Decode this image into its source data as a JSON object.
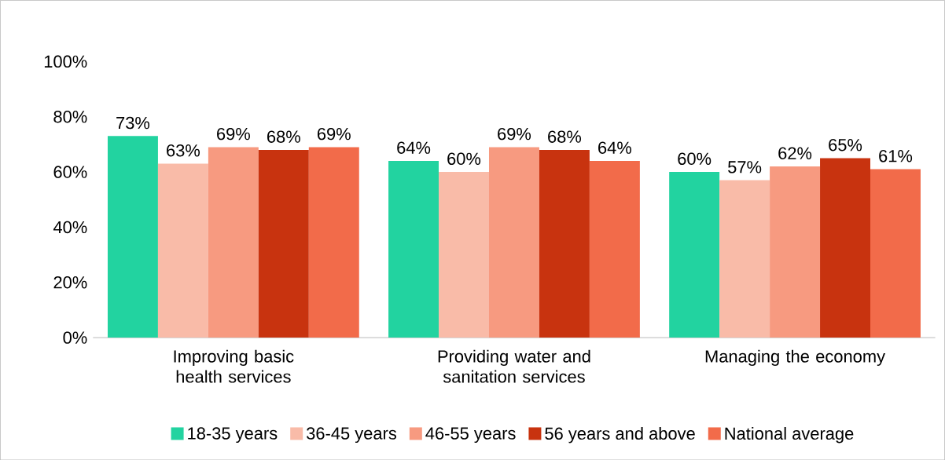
{
  "chart_data": {
    "type": "bar",
    "categories": [
      "Improving basic health services",
      "Providing water and sanitation services",
      "Managing the economy"
    ],
    "series": [
      {
        "name": "18-35 years",
        "color": "#22d3a0",
        "values": [
          73,
          64,
          60
        ],
        "value_labels": [
          "73%",
          "64%",
          "60%"
        ]
      },
      {
        "name": "36-45 years",
        "color": "#f9bba8",
        "values": [
          63,
          60,
          57
        ],
        "value_labels": [
          "63%",
          "60%",
          "57%"
        ]
      },
      {
        "name": "46-55 years",
        "color": "#f79a80",
        "values": [
          69,
          69,
          62
        ],
        "value_labels": [
          "69%",
          "69%",
          "62%"
        ]
      },
      {
        "name": "56 years and above",
        "color": "#c8330f",
        "values": [
          68,
          68,
          65
        ],
        "value_labels": [
          "68%",
          "68%",
          "65%"
        ]
      },
      {
        "name": "National average",
        "color": "#f26b4a",
        "values": [
          69,
          64,
          61
        ],
        "value_labels": [
          "69%",
          "64%",
          "61%"
        ]
      }
    ],
    "ylim": [
      0,
      100
    ],
    "yticks": [
      {
        "value": 0,
        "label": "0%"
      },
      {
        "value": 20,
        "label": "20%"
      },
      {
        "value": 40,
        "label": "40%"
      },
      {
        "value": 60,
        "label": "60%"
      },
      {
        "value": 80,
        "label": "80%"
      },
      {
        "value": 100,
        "label": "100%"
      }
    ],
    "grid": false,
    "legend": "bottom"
  }
}
